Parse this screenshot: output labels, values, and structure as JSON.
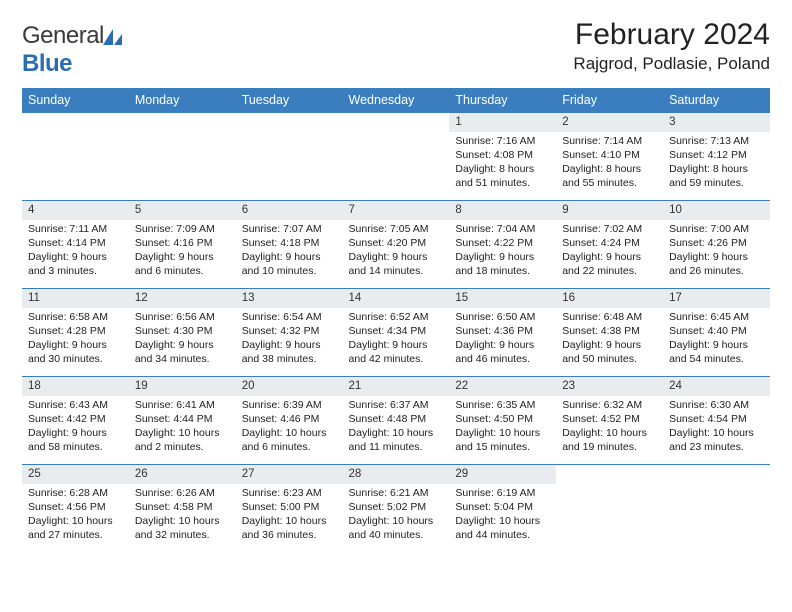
{
  "brand": {
    "word1": "General",
    "word2": "Blue"
  },
  "title": "February 2024",
  "location": "Rajgrod, Podlasie, Poland",
  "colors": {
    "header_bar": "#3b7ec0",
    "daynum_bg": "#e9ecef",
    "brand_blue": "#2a6db5",
    "text": "#222222",
    "row_divider": "#3b7ec0"
  },
  "weekdays": [
    "Sunday",
    "Monday",
    "Tuesday",
    "Wednesday",
    "Thursday",
    "Friday",
    "Saturday"
  ],
  "weeks": [
    [
      {
        "day": "",
        "sunrise": "",
        "sunset": "",
        "daylight1": "",
        "daylight2": ""
      },
      {
        "day": "",
        "sunrise": "",
        "sunset": "",
        "daylight1": "",
        "daylight2": ""
      },
      {
        "day": "",
        "sunrise": "",
        "sunset": "",
        "daylight1": "",
        "daylight2": ""
      },
      {
        "day": "",
        "sunrise": "",
        "sunset": "",
        "daylight1": "",
        "daylight2": ""
      },
      {
        "day": "1",
        "sunrise": "Sunrise: 7:16 AM",
        "sunset": "Sunset: 4:08 PM",
        "daylight1": "Daylight: 8 hours",
        "daylight2": "and 51 minutes."
      },
      {
        "day": "2",
        "sunrise": "Sunrise: 7:14 AM",
        "sunset": "Sunset: 4:10 PM",
        "daylight1": "Daylight: 8 hours",
        "daylight2": "and 55 minutes."
      },
      {
        "day": "3",
        "sunrise": "Sunrise: 7:13 AM",
        "sunset": "Sunset: 4:12 PM",
        "daylight1": "Daylight: 8 hours",
        "daylight2": "and 59 minutes."
      }
    ],
    [
      {
        "day": "4",
        "sunrise": "Sunrise: 7:11 AM",
        "sunset": "Sunset: 4:14 PM",
        "daylight1": "Daylight: 9 hours",
        "daylight2": "and 3 minutes."
      },
      {
        "day": "5",
        "sunrise": "Sunrise: 7:09 AM",
        "sunset": "Sunset: 4:16 PM",
        "daylight1": "Daylight: 9 hours",
        "daylight2": "and 6 minutes."
      },
      {
        "day": "6",
        "sunrise": "Sunrise: 7:07 AM",
        "sunset": "Sunset: 4:18 PM",
        "daylight1": "Daylight: 9 hours",
        "daylight2": "and 10 minutes."
      },
      {
        "day": "7",
        "sunrise": "Sunrise: 7:05 AM",
        "sunset": "Sunset: 4:20 PM",
        "daylight1": "Daylight: 9 hours",
        "daylight2": "and 14 minutes."
      },
      {
        "day": "8",
        "sunrise": "Sunrise: 7:04 AM",
        "sunset": "Sunset: 4:22 PM",
        "daylight1": "Daylight: 9 hours",
        "daylight2": "and 18 minutes."
      },
      {
        "day": "9",
        "sunrise": "Sunrise: 7:02 AM",
        "sunset": "Sunset: 4:24 PM",
        "daylight1": "Daylight: 9 hours",
        "daylight2": "and 22 minutes."
      },
      {
        "day": "10",
        "sunrise": "Sunrise: 7:00 AM",
        "sunset": "Sunset: 4:26 PM",
        "daylight1": "Daylight: 9 hours",
        "daylight2": "and 26 minutes."
      }
    ],
    [
      {
        "day": "11",
        "sunrise": "Sunrise: 6:58 AM",
        "sunset": "Sunset: 4:28 PM",
        "daylight1": "Daylight: 9 hours",
        "daylight2": "and 30 minutes."
      },
      {
        "day": "12",
        "sunrise": "Sunrise: 6:56 AM",
        "sunset": "Sunset: 4:30 PM",
        "daylight1": "Daylight: 9 hours",
        "daylight2": "and 34 minutes."
      },
      {
        "day": "13",
        "sunrise": "Sunrise: 6:54 AM",
        "sunset": "Sunset: 4:32 PM",
        "daylight1": "Daylight: 9 hours",
        "daylight2": "and 38 minutes."
      },
      {
        "day": "14",
        "sunrise": "Sunrise: 6:52 AM",
        "sunset": "Sunset: 4:34 PM",
        "daylight1": "Daylight: 9 hours",
        "daylight2": "and 42 minutes."
      },
      {
        "day": "15",
        "sunrise": "Sunrise: 6:50 AM",
        "sunset": "Sunset: 4:36 PM",
        "daylight1": "Daylight: 9 hours",
        "daylight2": "and 46 minutes."
      },
      {
        "day": "16",
        "sunrise": "Sunrise: 6:48 AM",
        "sunset": "Sunset: 4:38 PM",
        "daylight1": "Daylight: 9 hours",
        "daylight2": "and 50 minutes."
      },
      {
        "day": "17",
        "sunrise": "Sunrise: 6:45 AM",
        "sunset": "Sunset: 4:40 PM",
        "daylight1": "Daylight: 9 hours",
        "daylight2": "and 54 minutes."
      }
    ],
    [
      {
        "day": "18",
        "sunrise": "Sunrise: 6:43 AM",
        "sunset": "Sunset: 4:42 PM",
        "daylight1": "Daylight: 9 hours",
        "daylight2": "and 58 minutes."
      },
      {
        "day": "19",
        "sunrise": "Sunrise: 6:41 AM",
        "sunset": "Sunset: 4:44 PM",
        "daylight1": "Daylight: 10 hours",
        "daylight2": "and 2 minutes."
      },
      {
        "day": "20",
        "sunrise": "Sunrise: 6:39 AM",
        "sunset": "Sunset: 4:46 PM",
        "daylight1": "Daylight: 10 hours",
        "daylight2": "and 6 minutes."
      },
      {
        "day": "21",
        "sunrise": "Sunrise: 6:37 AM",
        "sunset": "Sunset: 4:48 PM",
        "daylight1": "Daylight: 10 hours",
        "daylight2": "and 11 minutes."
      },
      {
        "day": "22",
        "sunrise": "Sunrise: 6:35 AM",
        "sunset": "Sunset: 4:50 PM",
        "daylight1": "Daylight: 10 hours",
        "daylight2": "and 15 minutes."
      },
      {
        "day": "23",
        "sunrise": "Sunrise: 6:32 AM",
        "sunset": "Sunset: 4:52 PM",
        "daylight1": "Daylight: 10 hours",
        "daylight2": "and 19 minutes."
      },
      {
        "day": "24",
        "sunrise": "Sunrise: 6:30 AM",
        "sunset": "Sunset: 4:54 PM",
        "daylight1": "Daylight: 10 hours",
        "daylight2": "and 23 minutes."
      }
    ],
    [
      {
        "day": "25",
        "sunrise": "Sunrise: 6:28 AM",
        "sunset": "Sunset: 4:56 PM",
        "daylight1": "Daylight: 10 hours",
        "daylight2": "and 27 minutes."
      },
      {
        "day": "26",
        "sunrise": "Sunrise: 6:26 AM",
        "sunset": "Sunset: 4:58 PM",
        "daylight1": "Daylight: 10 hours",
        "daylight2": "and 32 minutes."
      },
      {
        "day": "27",
        "sunrise": "Sunrise: 6:23 AM",
        "sunset": "Sunset: 5:00 PM",
        "daylight1": "Daylight: 10 hours",
        "daylight2": "and 36 minutes."
      },
      {
        "day": "28",
        "sunrise": "Sunrise: 6:21 AM",
        "sunset": "Sunset: 5:02 PM",
        "daylight1": "Daylight: 10 hours",
        "daylight2": "and 40 minutes."
      },
      {
        "day": "29",
        "sunrise": "Sunrise: 6:19 AM",
        "sunset": "Sunset: 5:04 PM",
        "daylight1": "Daylight: 10 hours",
        "daylight2": "and 44 minutes."
      },
      {
        "day": "",
        "sunrise": "",
        "sunset": "",
        "daylight1": "",
        "daylight2": ""
      },
      {
        "day": "",
        "sunrise": "",
        "sunset": "",
        "daylight1": "",
        "daylight2": ""
      }
    ]
  ]
}
